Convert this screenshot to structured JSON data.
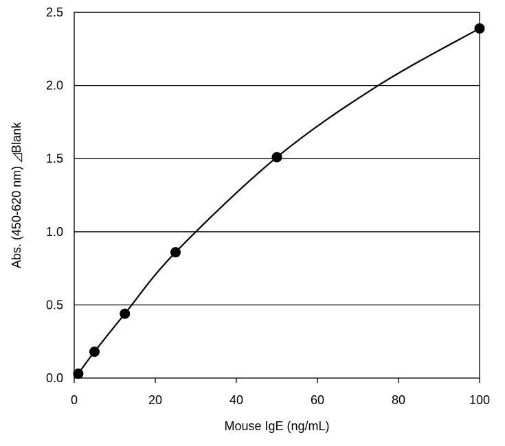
{
  "chart_data": {
    "type": "scatter",
    "title": "",
    "xlabel": "Mouse IgE (ng/mL)",
    "ylabel": "Abs. (450-620 nm) ◿Blank",
    "xlim": [
      0,
      100
    ],
    "ylim": [
      0,
      2.5
    ],
    "x_ticks": [
      0,
      20,
      40,
      60,
      80,
      100
    ],
    "y_ticks": [
      0.0,
      0.5,
      1.0,
      1.5,
      2.0,
      2.5
    ],
    "x_tick_labels": [
      "0",
      "20",
      "40",
      "60",
      "80",
      "100"
    ],
    "y_tick_labels": [
      "0.0",
      "0.5",
      "1.0",
      "1.5",
      "2.0",
      "2.5"
    ],
    "grid": "horizontal",
    "legend": "none",
    "series": [
      {
        "x": [
          1.0,
          5.0,
          12.5,
          25,
          50,
          100
        ],
        "y": [
          0.03,
          0.18,
          0.44,
          0.86,
          1.51,
          2.39
        ]
      }
    ],
    "fit_curve": {
      "type": "smooth",
      "points": [
        [
          0.2,
          0.0
        ],
        [
          1,
          0.03
        ],
        [
          5,
          0.18
        ],
        [
          12.5,
          0.44
        ],
        [
          25,
          0.86
        ],
        [
          50,
          1.51
        ],
        [
          75,
          2.0
        ],
        [
          100,
          2.39
        ]
      ]
    },
    "colors": {
      "marker": "#000000",
      "line": "#000000",
      "grid": "#000000"
    }
  }
}
